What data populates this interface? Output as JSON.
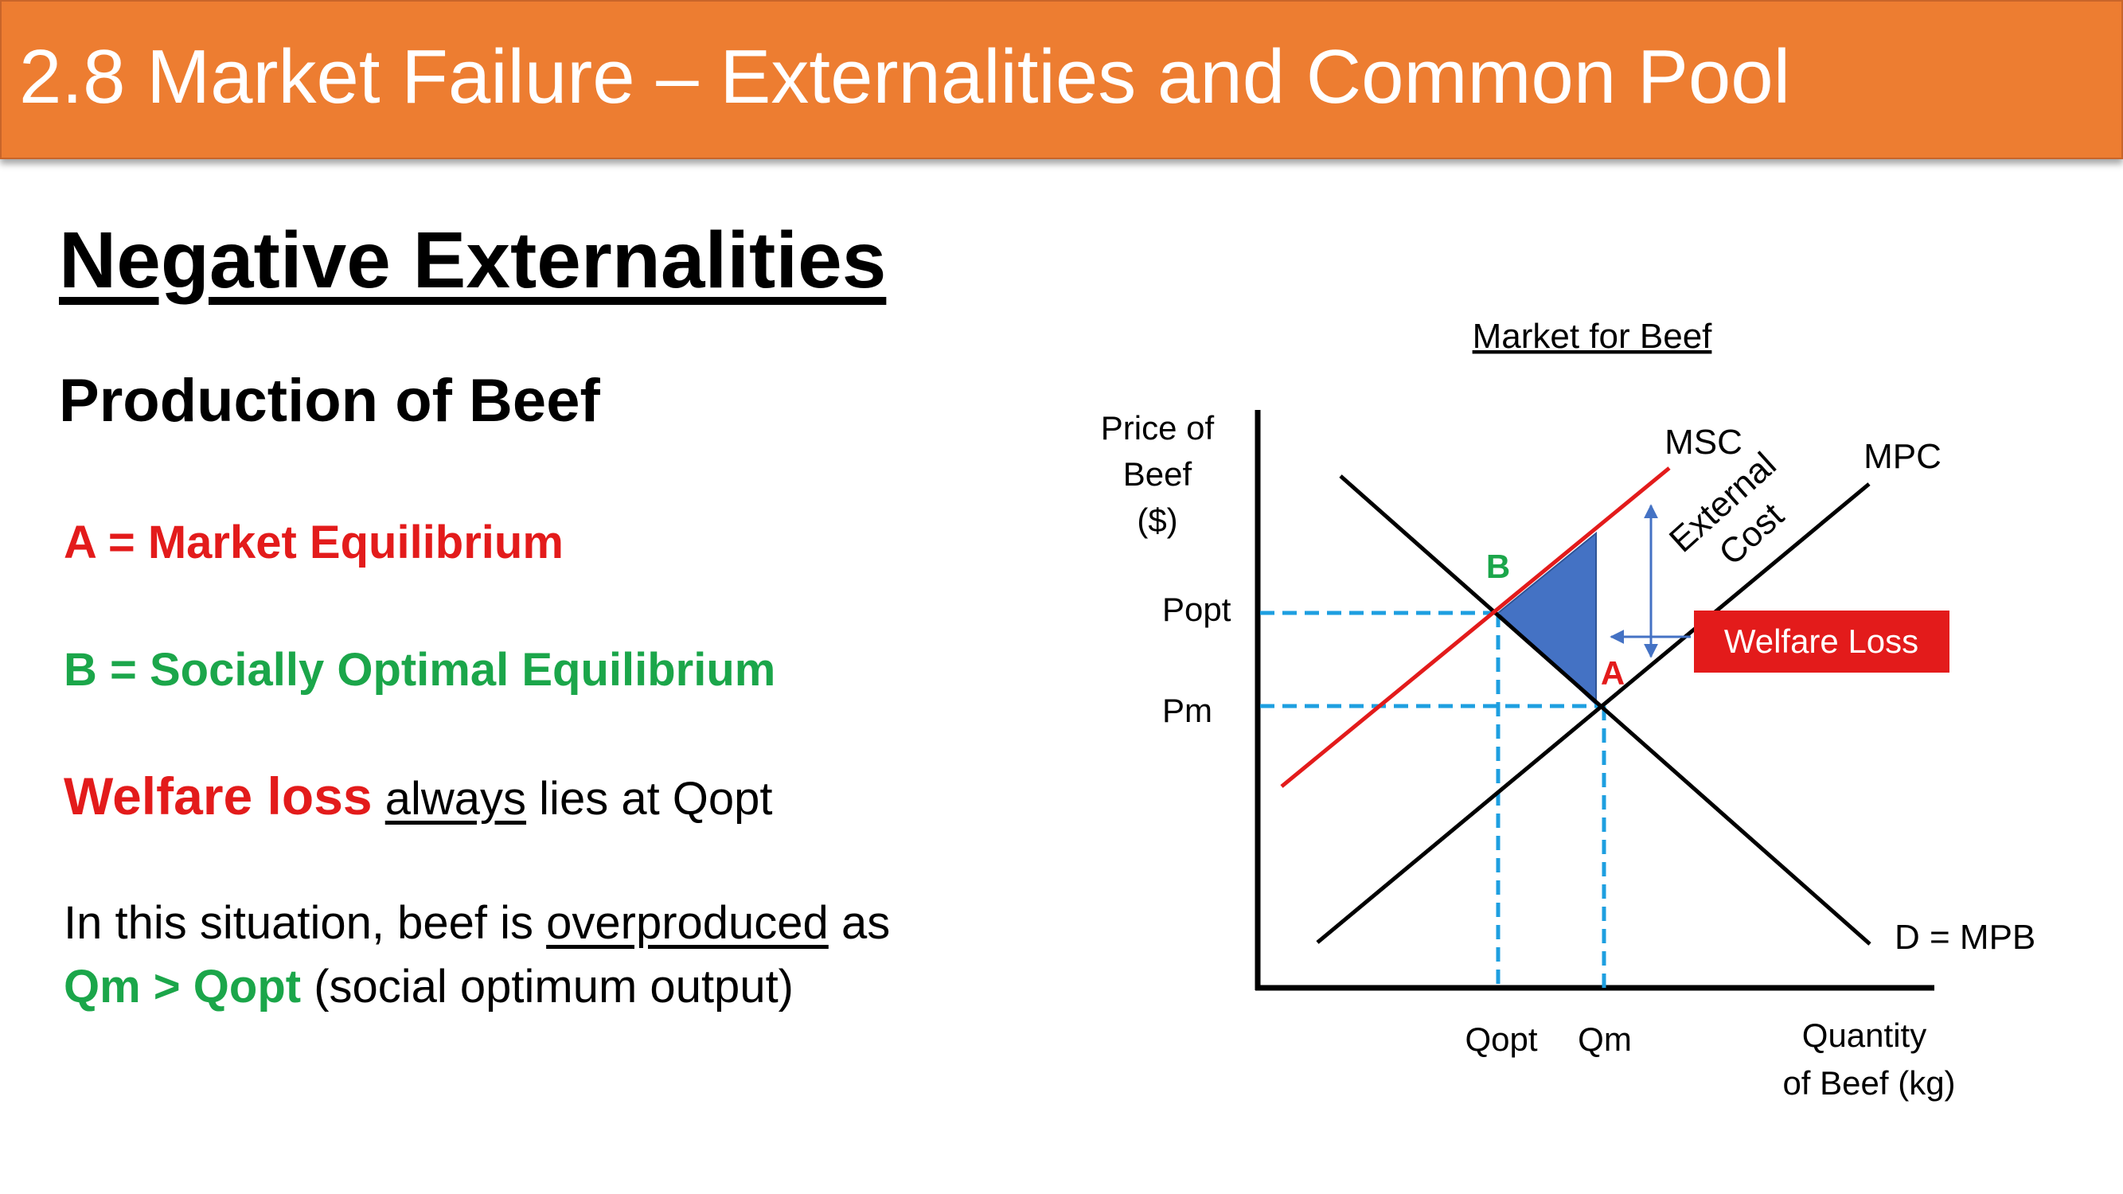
{
  "title": "2.8 Market Failure – Externalities and Common Pool",
  "heading": "Negative Externalities",
  "subheading": "Production of Beef",
  "legend_a": "A = Market Equilibrium",
  "legend_b": "B = Socially Optimal Equilibrium",
  "welfare_line": {
    "bold": "Welfare loss",
    "underlined": "always",
    "rest": "lies at Qopt"
  },
  "explanation": {
    "line1_start": "In this situation, beef is",
    "line1_underlined": "overproduced",
    "line1_end": "as",
    "line2_green": "Qm > Qopt",
    "line2_rest": "(social optimum output)"
  },
  "diagram": {
    "title": "Market for Beef",
    "y_axis_label": [
      "Price of",
      "Beef",
      "($)"
    ],
    "x_axis_label": [
      "Quantity",
      "of Beef (kg)"
    ],
    "curves": {
      "msc": "MSC",
      "mpc": "MPC",
      "demand": "D = MPB"
    },
    "external_cost_label": [
      "External",
      "Cost"
    ],
    "welfare_loss_label": "Welfare Loss",
    "price_ticks": {
      "popt": "Popt",
      "pm": "Pm"
    },
    "quantity_ticks": {
      "qopt": "Qopt",
      "qm": "Qm"
    },
    "point_a": "A",
    "point_b": "B",
    "colors": {
      "msc": "#E31B1B",
      "mpc": "#000000",
      "demand": "#000000",
      "guide": "#1E9FE0",
      "welfare_area": "#4472C4",
      "welfare_box": "#E31B1B"
    }
  }
}
